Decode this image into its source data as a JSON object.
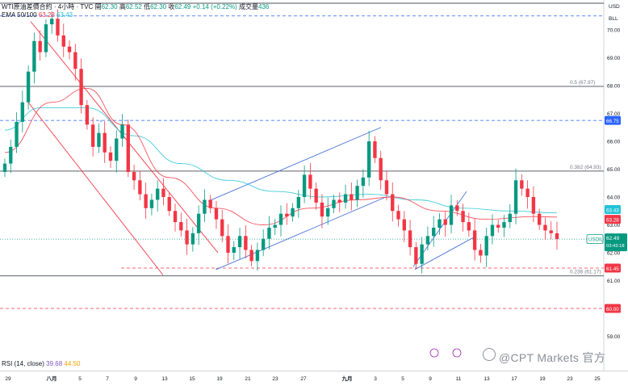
{
  "header": {
    "symbol": "WTI原油差價合約 · 4小時 · TVC",
    "open_label": "開",
    "open": "62.30",
    "high_label": "高",
    "high": "62.52",
    "low_label": "低",
    "low": "62.30",
    "close_label": "收",
    "close": "62.49",
    "change": "+0.14 (+0.22%)",
    "volume_label": "成交量",
    "volume": "436",
    "ema_label": "EMA 50/100",
    "ema50": "63.28",
    "ema100": "63.43",
    "rsi_label": "RSI (14, close)",
    "rsi_value": "39.68",
    "rsi_ma": "44.50"
  },
  "axis": {
    "currency": "USD",
    "scale_mode": "BLL",
    "y_ticks": [
      "70.00",
      "69.00",
      "68.00",
      "67.00",
      "66.00",
      "65.00",
      "64.00",
      "63.00",
      "62.00",
      "61.00",
      "60.00",
      "59.00"
    ],
    "x_ticks": [
      "29",
      "八月",
      "5",
      "7",
      "9",
      "13",
      "15",
      "19",
      "21",
      "23",
      "27",
      "九月",
      "3",
      "5",
      "9",
      "11",
      "13",
      "17",
      "19",
      "23",
      "25"
    ]
  },
  "price_tags": {
    "level_66_75": "66.75",
    "ema100": "63.43",
    "ema50": "63.28",
    "symbol_tag": "USOIL",
    "current": "62.49",
    "countdown": "03:43:18",
    "level_61_45": "61.45",
    "level_60_00": "60.00"
  },
  "fib_labels": {
    "f05": "0.5 (67.97)",
    "f0382": "0.382 (64.93)",
    "f0236": "0.236 (61.17)"
  },
  "colors": {
    "up": "#089981",
    "down": "#f23645",
    "ema50": "#f23645",
    "ema100": "#22c3d6",
    "channel": "#4a76d9",
    "wedge": "#f23645",
    "blue_level": "#2962ff",
    "red_level": "#f23645",
    "fib": "#787b86"
  },
  "watermark": "@CPT Markets 官方",
  "chart_data": {
    "type": "candlestick",
    "title": "WTI原油差價合約 · 4小時 · TVC",
    "xlabel": "",
    "ylabel": "",
    "ylim": [
      58.5,
      71.5
    ],
    "grid": false,
    "x": [
      "29",
      "八月",
      "5",
      "7",
      "9",
      "13",
      "15",
      "19",
      "21",
      "23",
      "27",
      "九月",
      "3",
      "5",
      "9",
      "11",
      "13",
      "17",
      "19",
      "23",
      "25"
    ],
    "close_path": [
      [
        0,
        65.2
      ],
      [
        1,
        65.8
      ],
      [
        2,
        66.7
      ],
      [
        3,
        67.4
      ],
      [
        4,
        68.5
      ],
      [
        5,
        69.6
      ],
      [
        6,
        69.2
      ],
      [
        7,
        70.2
      ],
      [
        8,
        70.4
      ],
      [
        9,
        69.8
      ],
      [
        10,
        69.4
      ],
      [
        11,
        69.2
      ],
      [
        12,
        68.6
      ],
      [
        13,
        67.3
      ],
      [
        14,
        66.6
      ],
      [
        15,
        65.8
      ],
      [
        16,
        66.3
      ],
      [
        17,
        65.6
      ],
      [
        18,
        65.3
      ],
      [
        19,
        66.1
      ],
      [
        20,
        66.6
      ],
      [
        21,
        64.9
      ],
      [
        22,
        64.6
      ],
      [
        23,
        64.1
      ],
      [
        24,
        63.6
      ],
      [
        25,
        63.9
      ],
      [
        26,
        64.3
      ],
      [
        27,
        64.0
      ],
      [
        28,
        63.5
      ],
      [
        29,
        63.1
      ],
      [
        30,
        62.8
      ],
      [
        31,
        62.3
      ],
      [
        32,
        62.7
      ],
      [
        33,
        63.4
      ],
      [
        34,
        63.9
      ],
      [
        35,
        63.6
      ],
      [
        36,
        63.2
      ],
      [
        37,
        62.6
      ],
      [
        38,
        62.0
      ],
      [
        39,
        62.2
      ],
      [
        40,
        62.6
      ],
      [
        41,
        62.1
      ],
      [
        42,
        61.7
      ],
      [
        43,
        62.1
      ],
      [
        44,
        62.5
      ],
      [
        45,
        62.9
      ],
      [
        46,
        63.0
      ],
      [
        47,
        63.4
      ],
      [
        48,
        63.3
      ],
      [
        49,
        63.6
      ],
      [
        50,
        64.0
      ],
      [
        51,
        64.8
      ],
      [
        52,
        64.3
      ],
      [
        53,
        63.8
      ],
      [
        54,
        63.3
      ],
      [
        55,
        63.6
      ],
      [
        56,
        63.9
      ],
      [
        57,
        63.8
      ],
      [
        58,
        64.1
      ],
      [
        59,
        63.9
      ],
      [
        60,
        64.4
      ],
      [
        61,
        64.7
      ],
      [
        62,
        66.0
      ],
      [
        63,
        65.4
      ],
      [
        64,
        64.6
      ],
      [
        65,
        64.1
      ],
      [
        66,
        63.5
      ],
      [
        67,
        63.2
      ],
      [
        68,
        62.8
      ],
      [
        69,
        62.2
      ],
      [
        70,
        61.6
      ],
      [
        71,
        62.3
      ],
      [
        72,
        62.6
      ],
      [
        73,
        62.9
      ],
      [
        74,
        63.2
      ],
      [
        75,
        63.0
      ],
      [
        76,
        63.7
      ],
      [
        77,
        63.5
      ],
      [
        78,
        63.1
      ],
      [
        79,
        62.8
      ],
      [
        80,
        62.1
      ],
      [
        81,
        61.9
      ],
      [
        82,
        62.6
      ],
      [
        83,
        63.0
      ],
      [
        84,
        62.9
      ],
      [
        85,
        63.1
      ],
      [
        86,
        63.4
      ],
      [
        87,
        64.6
      ],
      [
        88,
        64.3
      ],
      [
        89,
        64.0
      ],
      [
        90,
        63.4
      ],
      [
        91,
        63.0
      ],
      [
        92,
        62.8
      ],
      [
        93,
        62.7
      ],
      [
        94,
        62.49
      ]
    ],
    "ema50": [
      [
        0,
        65.6
      ],
      [
        8,
        67.4
      ],
      [
        14,
        67.9
      ],
      [
        20,
        66.6
      ],
      [
        28,
        64.7
      ],
      [
        36,
        63.6
      ],
      [
        44,
        63.0
      ],
      [
        52,
        63.6
      ],
      [
        60,
        63.9
      ],
      [
        66,
        64.0
      ],
      [
        74,
        63.5
      ],
      [
        82,
        63.2
      ],
      [
        90,
        63.3
      ],
      [
        94,
        63.28
      ]
    ],
    "ema100": [
      [
        0,
        66.4
      ],
      [
        6,
        67.2
      ],
      [
        14,
        67.2
      ],
      [
        22,
        66.2
      ],
      [
        30,
        65.2
      ],
      [
        38,
        64.6
      ],
      [
        46,
        64.2
      ],
      [
        54,
        64.0
      ],
      [
        62,
        64.1
      ],
      [
        70,
        63.9
      ],
      [
        78,
        63.6
      ],
      [
        86,
        63.5
      ],
      [
        94,
        63.43
      ]
    ],
    "levels": [
      {
        "price": 66.75,
        "style": "dashed",
        "color": "blue"
      },
      {
        "price": 61.45,
        "style": "dashed",
        "color": "red"
      },
      {
        "price": 60.0,
        "style": "dashed",
        "color": "red"
      }
    ],
    "fibonacci": [
      {
        "ratio": "0.5",
        "price": 67.97
      },
      {
        "ratio": "0.382",
        "price": 64.93
      },
      {
        "ratio": "0.236",
        "price": 61.17
      }
    ],
    "last": 62.49,
    "ema50_last": 63.28,
    "ema100_last": 63.43,
    "rsi": {
      "period": 14,
      "value": 39.68,
      "ma": 44.5
    }
  }
}
